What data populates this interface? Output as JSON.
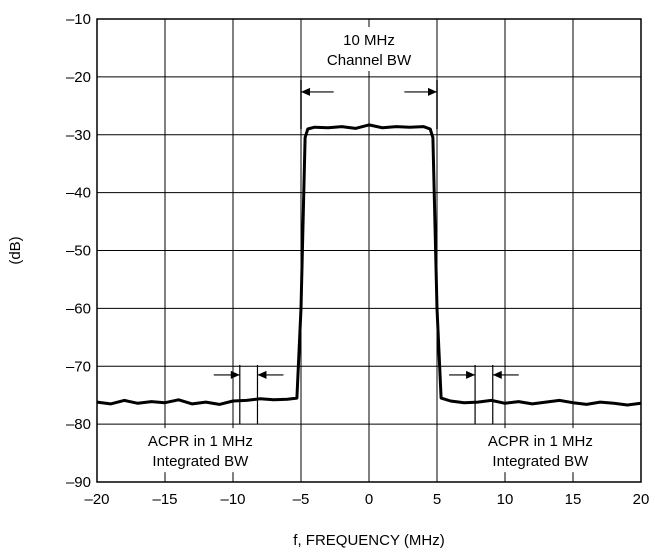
{
  "chart_data": {
    "type": "line",
    "title": "",
    "xlabel": "f, FREQUENCY (MHz)",
    "ylabel": "(dB)",
    "xlim": [
      -20,
      20
    ],
    "ylim": [
      -90,
      -10
    ],
    "x_ticks": [
      -20,
      -15,
      -10,
      -5,
      0,
      5,
      10,
      15,
      20
    ],
    "x_tick_labels": [
      "–20",
      "–15",
      "–10",
      "–5",
      "0",
      "5",
      "10",
      "15",
      "20"
    ],
    "y_ticks": [
      -10,
      -20,
      -30,
      -40,
      -50,
      -60,
      -70,
      -80,
      -90
    ],
    "y_tick_labels": [
      "–10",
      "–20",
      "–30",
      "–40",
      "–50",
      "–60",
      "–70",
      "–80",
      "–90"
    ],
    "grid": true,
    "series": [
      {
        "x": [
          -20,
          -19,
          -18,
          -17,
          -16,
          -15,
          -14,
          -13,
          -12,
          -11,
          -10,
          -9,
          -8,
          -7,
          -6,
          -5.3,
          -5.0,
          -4.7,
          -4.5,
          -4,
          -3,
          -2,
          -1,
          0,
          1,
          2,
          3,
          4,
          4.5,
          4.7,
          5.0,
          5.3,
          6,
          7,
          8,
          9,
          10,
          11,
          12,
          13,
          14,
          15,
          16,
          17,
          18,
          19,
          20
        ],
        "y": [
          -76.2,
          -76.5,
          -75.9,
          -76.4,
          -76.1,
          -76.3,
          -75.8,
          -76.5,
          -76.2,
          -76.6,
          -76.0,
          -75.9,
          -75.6,
          -75.8,
          -75.7,
          -75.5,
          -60,
          -30.5,
          -29.0,
          -28.7,
          -28.8,
          -28.6,
          -28.9,
          -28.3,
          -28.8,
          -28.6,
          -28.7,
          -28.6,
          -29.0,
          -30.5,
          -60,
          -75.5,
          -76.0,
          -76.3,
          -76.2,
          -75.9,
          -76.4,
          -76.1,
          -76.5,
          -76.2,
          -75.9,
          -76.3,
          -76.6,
          -76.2,
          -76.4,
          -76.7,
          -76.4
        ]
      }
    ],
    "annotations": {
      "channel_label_line1": "10 MHz",
      "channel_label_line2": "Channel BW",
      "acpr_left_line1": "ACPR in 1 MHz",
      "acpr_left_line2": "Integrated BW",
      "acpr_right_line1": "ACPR in 1 MHz",
      "acpr_right_line2": "Integrated BW"
    }
  }
}
